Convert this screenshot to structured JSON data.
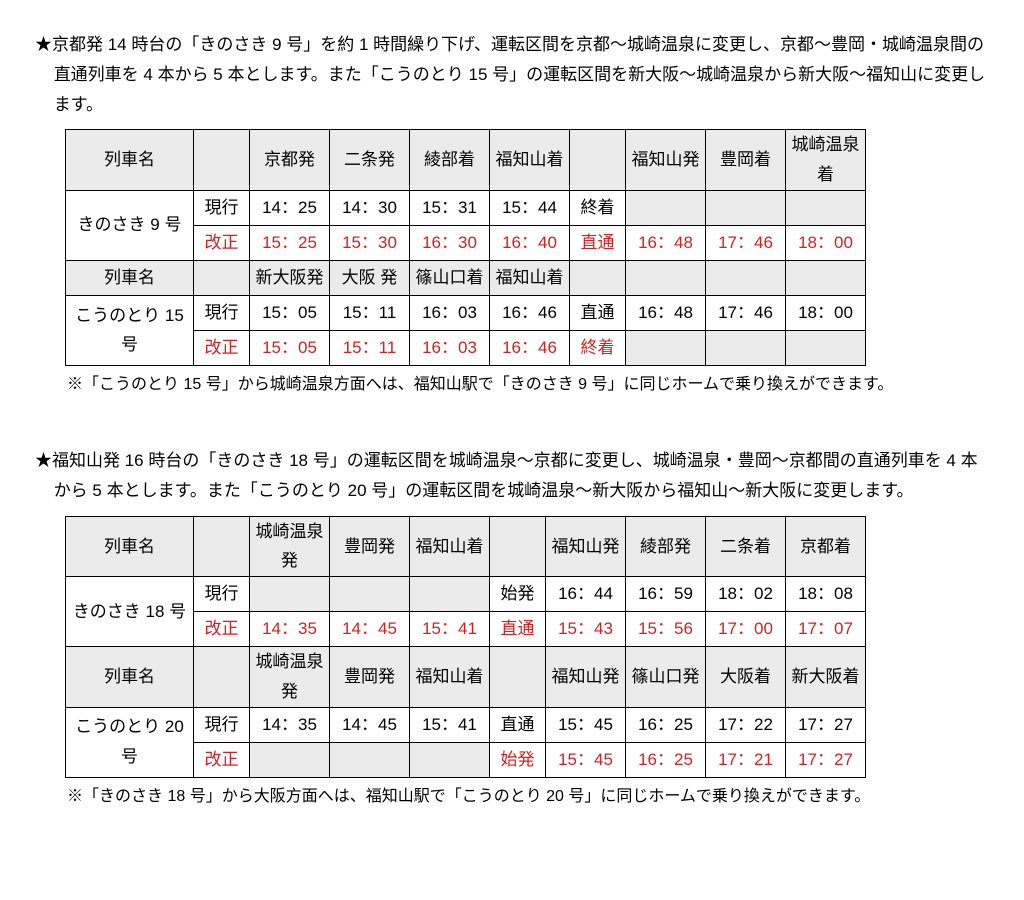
{
  "colors": {
    "red": "#d81e1e",
    "grey_bg": "#ebebeb",
    "border": "#000000"
  },
  "section1": {
    "headline": "★京都発 14 時台の「きのさき 9 号」を約 1 時間繰り下げ、運転区間を京都〜城崎温泉に変更し、京都〜豊岡・城崎温泉間の直通列車を 4 本から 5 本とします。また「こうのとり 15 号」の運転区間を新大阪〜城崎温泉から新大阪〜福知山に変更します。",
    "t1": {
      "header_label": "列車名",
      "cols": [
        "京都発",
        "二条発",
        "綾部着",
        "福知山着",
        "",
        "福知山発",
        "豊岡着",
        "城崎温泉着"
      ],
      "train": "きのさき 9 号",
      "rows": [
        {
          "type": "現行",
          "red": false,
          "cells": [
            "14：25",
            "14：30",
            "15：31",
            "15：44",
            "終着",
            "",
            "",
            ""
          ],
          "grey_end": true
        },
        {
          "type": "改正",
          "red": true,
          "cells": [
            "15：25",
            "15：30",
            "16：30",
            "16：40",
            "直通",
            "16：48",
            "17：46",
            "18：00"
          ],
          "grey_end": false
        }
      ]
    },
    "t2": {
      "header_label": "列車名",
      "cols": [
        "新大阪発",
        "大阪 発",
        "篠山口着",
        "福知山着",
        "",
        "",
        "",
        ""
      ],
      "train": "こうのとり 15 号",
      "rows": [
        {
          "type": "現行",
          "red": false,
          "cells": [
            "15：05",
            "15：11",
            "16：03",
            "16：46",
            "直通",
            "16：48",
            "17：46",
            "18：00"
          ],
          "grey_end": false
        },
        {
          "type": "改正",
          "red": true,
          "cells": [
            "15：05",
            "15：11",
            "16：03",
            "16：46",
            "終着",
            "",
            "",
            ""
          ],
          "grey_end": true
        }
      ]
    },
    "footnote": "※「こうのとり 15 号」から城崎温泉方面へは、福知山駅で「きのさき 9 号」に同じホームで乗り換えができます。"
  },
  "section2": {
    "headline": "★福知山発 16 時台の「きのさき 18 号」の運転区間を城崎温泉〜京都に変更し、城崎温泉・豊岡〜京都間の直通列車を 4 本から 5 本とします。また「こうのとり 20 号」の運転区間を城崎温泉〜新大阪から福知山〜新大阪に変更します。",
    "t1": {
      "header_label": "列車名",
      "cols": [
        "城崎温泉発",
        "豊岡発",
        "福知山着",
        "",
        "福知山発",
        "綾部発",
        "二条着",
        "京都着"
      ],
      "train": "きのさき 18 号",
      "rows": [
        {
          "type": "現行",
          "red": false,
          "cells": [
            "",
            "",
            "",
            "始発",
            "16：44",
            "16：59",
            "18：02",
            "18：08"
          ],
          "grey_start": true
        },
        {
          "type": "改正",
          "red": true,
          "cells": [
            "14：35",
            "14：45",
            "15：41",
            "直通",
            "15：43",
            "15：56",
            "17：00",
            "17：07"
          ],
          "grey_start": false
        }
      ]
    },
    "t2": {
      "header_label": "列車名",
      "cols": [
        "城崎温泉発",
        "豊岡発",
        "福知山着",
        "",
        "福知山発",
        "篠山口発",
        "大阪着",
        "新大阪着"
      ],
      "train": "こうのとり 20 号",
      "rows": [
        {
          "type": "現行",
          "red": false,
          "cells": [
            "14：35",
            "14：45",
            "15：41",
            "直通",
            "15：45",
            "16：25",
            "17：22",
            "17：27"
          ],
          "grey_start": false
        },
        {
          "type": "改正",
          "red": true,
          "cells": [
            "",
            "",
            "",
            "始発",
            "15：45",
            "16：25",
            "17：21",
            "17：27"
          ],
          "grey_start": true
        }
      ]
    },
    "footnote": "※「きのさき 18 号」から大阪方面へは、福知山駅で「こうのとり 20 号」に同じホームで乗り換えができます。"
  }
}
